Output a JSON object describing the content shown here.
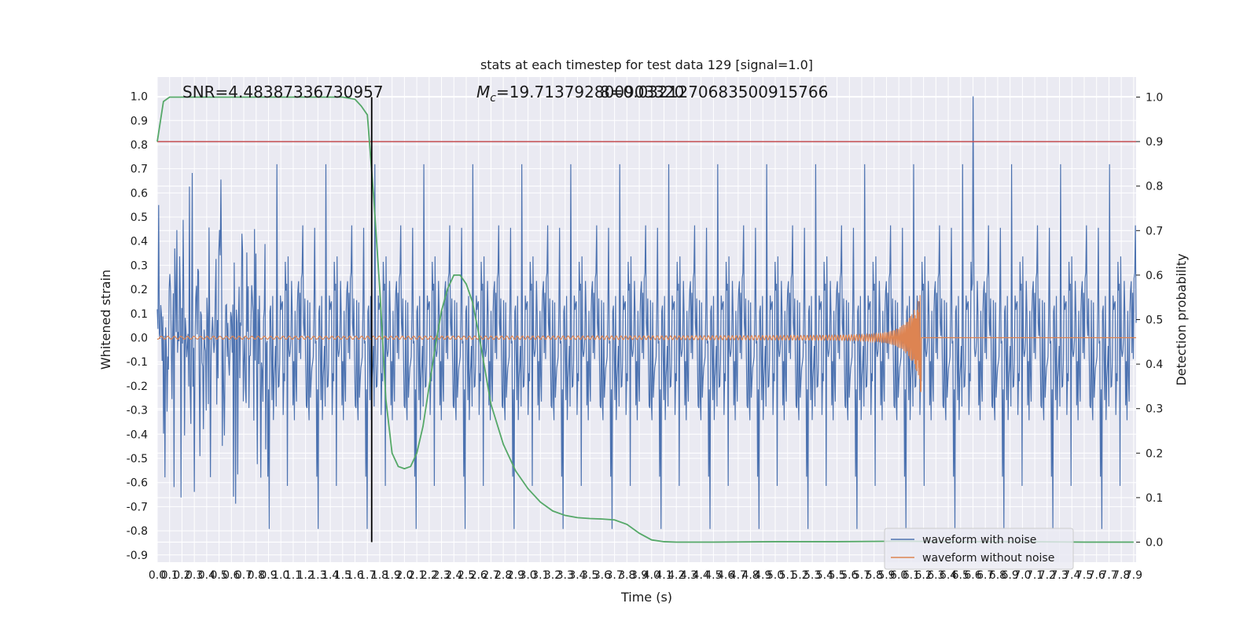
{
  "chart_data": {
    "type": "line",
    "title": "stats at each timestep for test data 129 [signal=1.0]",
    "xlabel": "Time (s)",
    "ylabel_left": "Whitened strain",
    "ylabel_right": "Detection probability",
    "xlim": [
      0,
      7.92
    ],
    "ylim_left": [
      -0.93,
      1.08
    ],
    "ylim_right": [
      -0.045,
      1.045
    ],
    "x_ticks": [
      "0.0",
      "0.1",
      "0.2",
      "0.3",
      "0.4",
      "0.5",
      "0.6",
      "0.7",
      "0.8",
      "0.9",
      "1.0",
      "1.1",
      "1.2",
      "1.3",
      "1.4",
      "1.5",
      "1.6",
      "1.7",
      "1.8",
      "1.9",
      "2.0",
      "2.1",
      "2.2",
      "2.3",
      "2.4",
      "2.5",
      "2.6",
      "2.7",
      "2.8",
      "2.9",
      "3.0",
      "3.1",
      "3.2",
      "3.3",
      "3.4",
      "3.5",
      "3.6",
      "3.7",
      "3.8",
      "3.9",
      "4.0",
      "4.1",
      "4.2",
      "4.3",
      "4.4",
      "4.5",
      "4.6",
      "4.7",
      "4.8",
      "4.9",
      "5.0",
      "5.1",
      "5.2",
      "5.3",
      "5.4",
      "5.5",
      "5.6",
      "5.7",
      "5.8",
      "5.9",
      "6.0",
      "6.1",
      "6.2",
      "6.3",
      "6.4",
      "6.5",
      "6.6",
      "6.7",
      "6.8",
      "6.9",
      "7.0",
      "7.1",
      "7.2",
      "7.3",
      "7.4",
      "7.5",
      "7.6",
      "7.7",
      "7.8",
      "7.9"
    ],
    "y_ticks_left": [
      "1.0",
      "0.9",
      "0.8",
      "0.7",
      "0.6",
      "0.5",
      "0.4",
      "0.3",
      "0.2",
      "0.1",
      "0.0",
      "-0.1",
      "-0.2",
      "-0.3",
      "-0.4",
      "-0.5",
      "-0.6",
      "-0.7",
      "-0.8",
      "-0.9"
    ],
    "y_ticks_right": [
      "1.0",
      "0.9",
      "0.8",
      "0.7",
      "0.6",
      "0.5",
      "0.4",
      "0.3",
      "0.2",
      "0.1",
      "0.0"
    ],
    "annotations": {
      "snr": "SNR=4.48387336730957",
      "mc_prefix": "M",
      "mc_sub": "c",
      "mc_value": "=19.713792800903320",
      "mc_overlap": "=0.03212706835009157 66",
      "mc_overlap_text": "8=0.0321270683500915766"
    },
    "legend": {
      "placement": "lower-right",
      "entries": [
        {
          "label": "waveform with noise",
          "color": "#4c72b0"
        },
        {
          "label": "waveform without noise",
          "color": "#dd8452"
        }
      ]
    },
    "series": [
      {
        "name": "waveform with noise",
        "color": "#4c72b0",
        "description": "dense noisy strain, envelope roughly ±0.3 to ±0.6 with spikes",
        "x_range": [
          0,
          7.92
        ],
        "typical_amplitude": 0.28,
        "max_spike": 1.0,
        "max_spike_x": 6.6
      },
      {
        "name": "waveform without noise",
        "color": "#dd8452",
        "description": "chirp signal growing to merger then flat",
        "x_range": [
          0,
          7.92
        ],
        "merger_x": 6.18,
        "peak_amplitude": 0.18,
        "min_amplitude": -0.4
      },
      {
        "name": "detection probability",
        "color": "#55a868",
        "axis": "right",
        "x": [
          0.0,
          0.05,
          0.1,
          0.2,
          0.5,
          1.0,
          1.5,
          1.6,
          1.65,
          1.7,
          1.75,
          1.8,
          1.85,
          1.9,
          1.95,
          2.0,
          2.05,
          2.1,
          2.15,
          2.2,
          2.25,
          2.3,
          2.35,
          2.4,
          2.45,
          2.5,
          2.55,
          2.6,
          2.65,
          2.7,
          2.8,
          2.9,
          3.0,
          3.1,
          3.2,
          3.3,
          3.4,
          3.5,
          3.6,
          3.7,
          3.8,
          3.9,
          4.0,
          4.1,
          4.2,
          4.5,
          5.0,
          5.5,
          6.0,
          6.5,
          7.0,
          7.5,
          7.9
        ],
        "y": [
          0.9,
          0.99,
          1.0,
          1.0,
          1.0,
          1.0,
          1.0,
          0.995,
          0.98,
          0.96,
          0.78,
          0.57,
          0.32,
          0.2,
          0.17,
          0.165,
          0.17,
          0.2,
          0.26,
          0.35,
          0.44,
          0.52,
          0.57,
          0.6,
          0.6,
          0.58,
          0.54,
          0.47,
          0.39,
          0.31,
          0.22,
          0.16,
          0.12,
          0.09,
          0.07,
          0.06,
          0.055,
          0.053,
          0.052,
          0.05,
          0.04,
          0.02,
          0.005,
          0.001,
          0.0,
          0.0,
          0.001,
          0.001,
          0.002,
          0.001,
          0.001,
          0.0,
          0.0
        ]
      }
    ],
    "threshold": {
      "axis": "right",
      "value": 0.9,
      "color": "#c44e52"
    },
    "vline": {
      "x": 1.735,
      "color": "#000000",
      "from_right": 0.0,
      "to_right": 1.0
    },
    "grid": true,
    "background_color": "#eaeaf2"
  }
}
